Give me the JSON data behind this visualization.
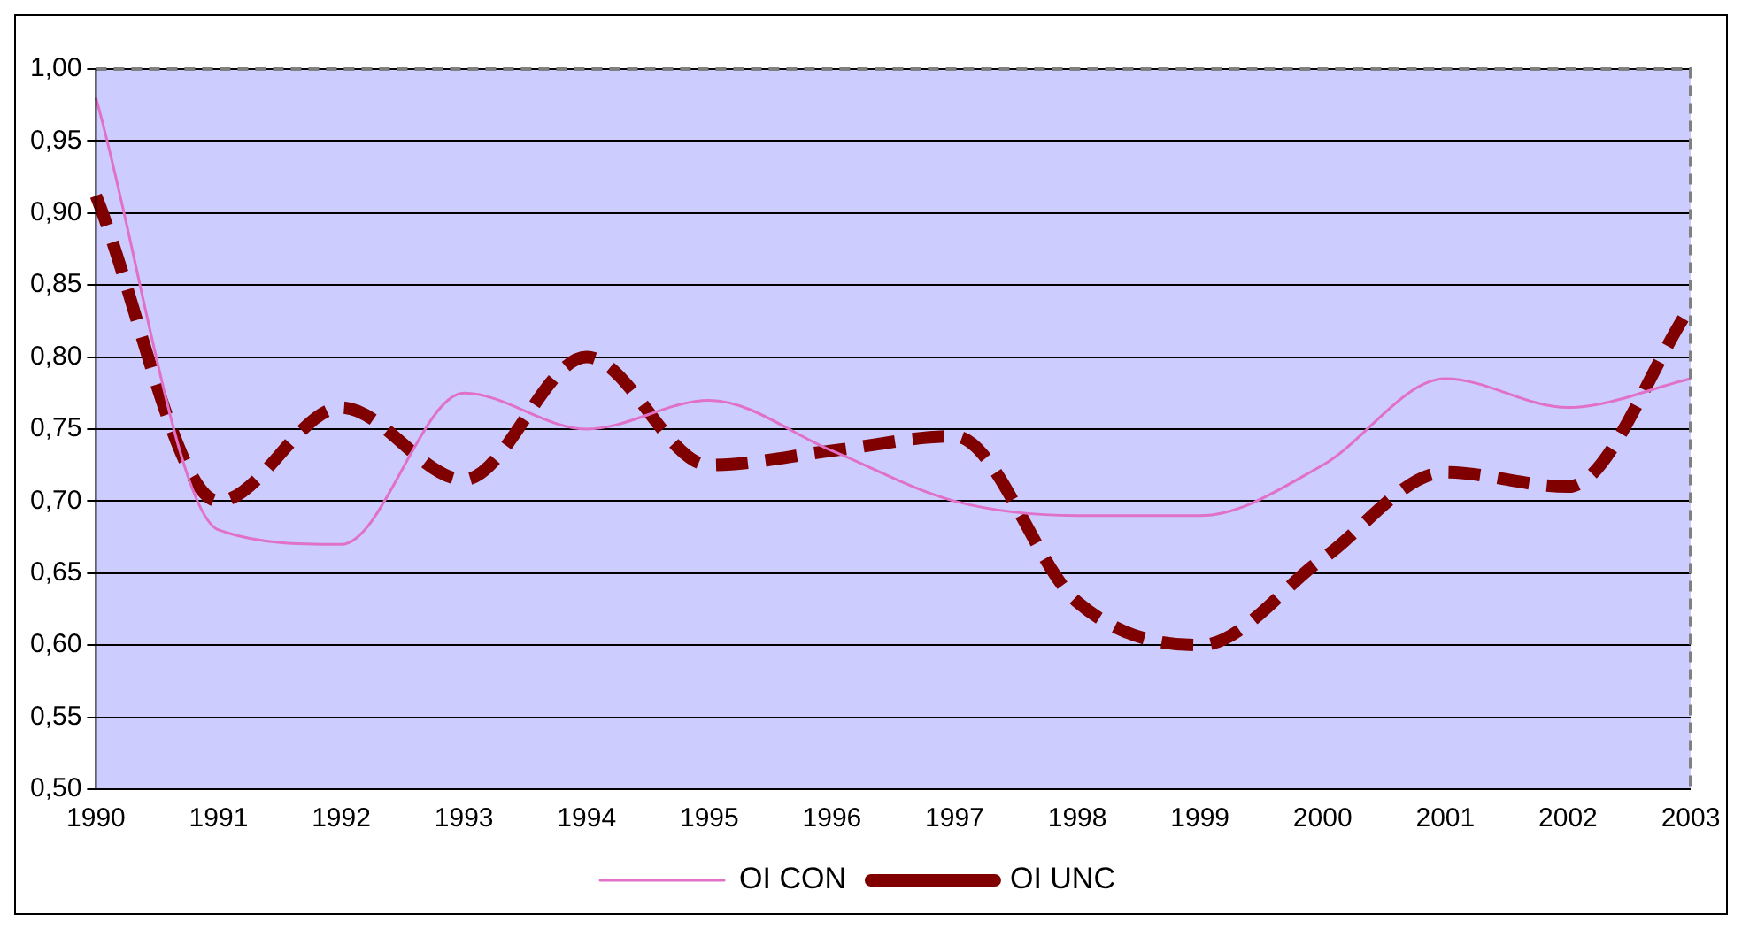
{
  "chart_data": {
    "type": "line",
    "categories": [
      "1990",
      "1991",
      "1992",
      "1993",
      "1994",
      "1995",
      "1996",
      "1997",
      "1998",
      "1999",
      "2000",
      "2001",
      "2002",
      "2003"
    ],
    "series": [
      {
        "name": "OI CON",
        "color": "#e070c8",
        "line_style": "solid",
        "values": [
          0.98,
          0.68,
          0.67,
          0.775,
          0.75,
          0.77,
          0.735,
          0.7,
          0.69,
          0.69,
          0.725,
          0.785,
          0.765,
          0.785
        ]
      },
      {
        "name": "OI UNC",
        "color": "#800000",
        "line_style": "dashed",
        "values": [
          0.912,
          0.7,
          0.765,
          0.715,
          0.8,
          0.725,
          0.735,
          0.745,
          0.63,
          0.6,
          0.66,
          0.72,
          0.71,
          0.835
        ]
      }
    ],
    "ylim": [
      0.5,
      1.0
    ],
    "yticks": [
      {
        "value": 0.5,
        "label": "0,50"
      },
      {
        "value": 0.55,
        "label": "0,55"
      },
      {
        "value": 0.6,
        "label": "0,60"
      },
      {
        "value": 0.65,
        "label": "0,65"
      },
      {
        "value": 0.7,
        "label": "0,70"
      },
      {
        "value": 0.75,
        "label": "0,75"
      },
      {
        "value": 0.8,
        "label": "0,80"
      },
      {
        "value": 0.85,
        "label": "0,85"
      },
      {
        "value": 0.9,
        "label": "0,90"
      },
      {
        "value": 0.95,
        "label": "0,95"
      },
      {
        "value": 1.0,
        "label": "1,00"
      }
    ],
    "grid": "y",
    "legend": "bottom",
    "marker": "none"
  }
}
